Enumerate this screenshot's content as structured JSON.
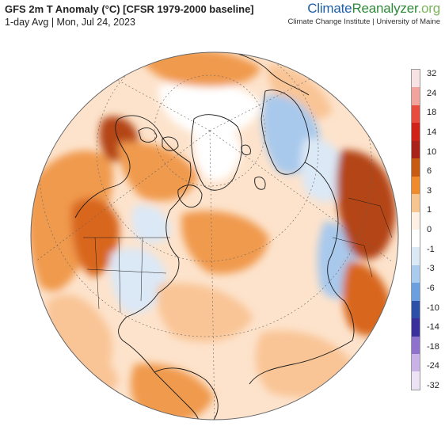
{
  "header": {
    "title": "GFS 2m T Anomaly (°C) [CFSR 1979-2000 baseline]",
    "subtitle": "1-day Avg | Mon, Jul 24, 2023"
  },
  "brand": {
    "name_part1": "Climate",
    "name_part2": "Reanalyzer",
    "name_part3": ".org",
    "tagline": "Climate Change Institute | University of Maine"
  },
  "legend": {
    "labels": [
      "32",
      "24",
      "18",
      "14",
      "10",
      "6",
      "3",
      "1",
      "0",
      "-1",
      "-3",
      "-6",
      "-10",
      "-14",
      "-18",
      "-24",
      "-32"
    ],
    "colors": [
      "#f7e3e3",
      "#f0a49d",
      "#e84c3f",
      "#d1221a",
      "#a8231a",
      "#c75b12",
      "#ef8a2d",
      "#f7c591",
      "#fef1e4",
      "#ffffff",
      "#dbe9f7",
      "#a9cbee",
      "#6c9fe0",
      "#2e4fa8",
      "#3b2f9c",
      "#8e72cc",
      "#c9b2e6",
      "#ede3f5"
    ]
  },
  "map": {
    "projection": "orthographic-north-polar",
    "palette": {
      "ocean_base": "#fde3cc",
      "warm_light": "#f9c596",
      "warm_mid": "#f09a4e",
      "warm_strong": "#d8661c",
      "warm_hot": "#b44512",
      "cool_light": "#dbe8f6",
      "cool_mid": "#a9c9ec",
      "neutral": "#ffffff",
      "coastline": "#1a1a1a",
      "graticule": "#666666"
    }
  }
}
